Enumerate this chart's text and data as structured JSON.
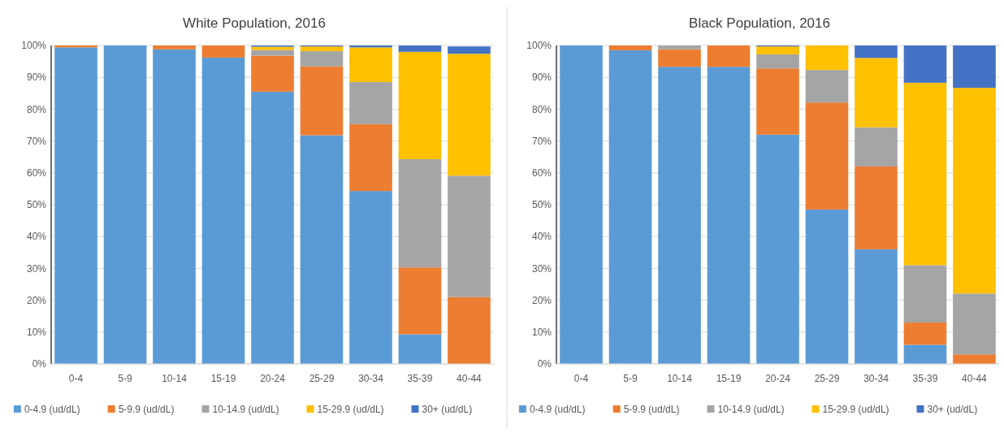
{
  "chart_data": [
    {
      "type": "bar",
      "title": "White Population, 2016",
      "stacked": true,
      "grid": "y",
      "legend": "bottom",
      "categories": [
        "0-4",
        "5-9",
        "10-14",
        "15-19",
        "20-24",
        "25-29",
        "30-34",
        "35-39",
        "40-44"
      ],
      "ylim": [
        0,
        100
      ],
      "yticks": [
        {
          "value": 0,
          "label": "0%"
        },
        {
          "value": 10,
          "label": "10%"
        },
        {
          "value": 20,
          "label": "20%"
        },
        {
          "value": 30,
          "label": "30%"
        },
        {
          "value": 40,
          "label": "40%"
        },
        {
          "value": 50,
          "label": "50%"
        },
        {
          "value": 60,
          "label": "60%"
        },
        {
          "value": 70,
          "label": "70%"
        },
        {
          "value": 80,
          "label": "80%"
        },
        {
          "value": 90,
          "label": "90%"
        },
        {
          "value": 100,
          "label": "100%"
        }
      ],
      "series": [
        {
          "name": "0-4.9 (ud/dL)",
          "color": "#5b9bd5",
          "values": [
            99.4,
            100,
            98.8,
            96.2,
            85.5,
            71.8,
            54.3,
            9.3,
            null
          ]
        },
        {
          "name": "5-9.9 (ud/dL)",
          "color": "#ed7d31",
          "values": [
            0.6,
            0,
            1.2,
            3.8,
            11.3,
            21.7,
            21.0,
            21.0,
            21.0
          ]
        },
        {
          "name": "10-14.9 (ud/dL)",
          "color": "#a5a5a5",
          "values": [
            0,
            0,
            0,
            0,
            1.8,
            4.7,
            13.2,
            34.0,
            38.1
          ]
        },
        {
          "name": "15-29.9 (ud/dL)",
          "color": "#ffc000",
          "values": [
            0,
            0,
            0,
            0,
            1.0,
            1.5,
            10.9,
            33.7,
            38.3
          ]
        },
        {
          "name": "30+ (ud/dL)",
          "color": "#4472c4",
          "values": [
            0,
            0,
            0,
            0,
            0.4,
            0.3,
            0.6,
            2.0,
            2.3
          ]
        }
      ]
    },
    {
      "type": "bar",
      "title": "Black Population, 2016",
      "stacked": true,
      "grid": "y",
      "legend": "bottom",
      "categories": [
        "0-4",
        "5-9",
        "10-14",
        "15-19",
        "20-24",
        "25-29",
        "30-34",
        "35-39",
        "40-44"
      ],
      "ylim": [
        0,
        100
      ],
      "yticks": [
        {
          "value": 0,
          "label": "0%"
        },
        {
          "value": 10,
          "label": "10%"
        },
        {
          "value": 20,
          "label": "20%"
        },
        {
          "value": 30,
          "label": "30%"
        },
        {
          "value": 40,
          "label": "40%"
        },
        {
          "value": 50,
          "label": "50%"
        },
        {
          "value": 60,
          "label": "60%"
        },
        {
          "value": 70,
          "label": "70%"
        },
        {
          "value": 80,
          "label": "80%"
        },
        {
          "value": 90,
          "label": "90%"
        },
        {
          "value": 100,
          "label": "100%"
        }
      ],
      "series": [
        {
          "name": "0-4.9 (ud/dL)",
          "color": "#5b9bd5",
          "values": [
            100,
            98.5,
            93.3,
            93.3,
            72.0,
            48.5,
            36.0,
            6.0,
            0
          ]
        },
        {
          "name": "5-9.9 (ud/dL)",
          "color": "#ed7d31",
          "values": [
            0,
            1.5,
            5.5,
            6.7,
            20.8,
            33.6,
            26.0,
            7.0,
            3.0
          ]
        },
        {
          "name": "10-14.9 (ud/dL)",
          "color": "#a5a5a5",
          "values": [
            0,
            0,
            1.2,
            0,
            4.4,
            10.2,
            12.3,
            18.0,
            19.1
          ]
        },
        {
          "name": "15-29.9 (ud/dL)",
          "color": "#ffc000",
          "values": [
            0,
            0,
            0,
            0,
            2.5,
            7.7,
            21.8,
            57.3,
            64.6
          ]
        },
        {
          "name": "30+ (ud/dL)",
          "color": "#4472c4",
          "values": [
            0,
            0,
            0,
            0,
            0.3,
            0,
            3.9,
            11.7,
            13.3
          ]
        }
      ]
    }
  ]
}
